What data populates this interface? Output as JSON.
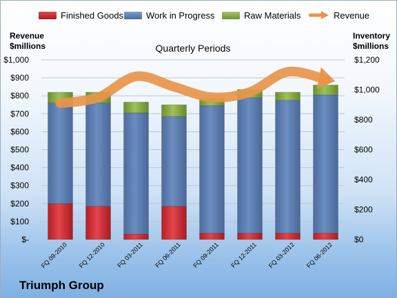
{
  "chart_data": {
    "type": "bar",
    "title": "Quarterly Periods",
    "categories": [
      "FQ 09-2010",
      "FQ 12-2010",
      "FQ 03-2011",
      "FQ 06-2011",
      "FQ 09-2011",
      "FQ 12-2011",
      "FQ 03-2012",
      "FQ 06-2012"
    ],
    "series": [
      {
        "name": "Finished Goods",
        "axis": "left",
        "stacked": true,
        "color": "#c0282e",
        "values": [
          200,
          185,
          30,
          185,
          35,
          35,
          35,
          35
        ]
      },
      {
        "name": "Work in Progress",
        "axis": "left",
        "stacked": true,
        "color": "#5b7db3",
        "values": [
          560,
          575,
          675,
          500,
          710,
          755,
          740,
          770
        ]
      },
      {
        "name": "Raw Materials",
        "axis": "left",
        "stacked": true,
        "color": "#8bb044",
        "values": [
          60,
          60,
          60,
          65,
          40,
          45,
          45,
          55
        ]
      },
      {
        "name": "Revenue",
        "axis": "right",
        "type": "line",
        "color": "#e8954a",
        "values": [
          910,
          950,
          1090,
          1020,
          950,
          985,
          1120,
          1070
        ]
      }
    ],
    "left_axis": {
      "label": "Revenue\n$millions",
      "min": 0,
      "max": 1000,
      "step": 100,
      "tick_labels": [
        "$-",
        "$100",
        "$200",
        "$300",
        "$400",
        "$500",
        "$600",
        "$700",
        "$800",
        "$900",
        "$1,000"
      ]
    },
    "right_axis": {
      "label": "Inventory\n$millions",
      "min": 0,
      "max": 1200,
      "step": 200,
      "tick_labels": [
        "$0",
        "$200",
        "$400",
        "$600",
        "$800",
        "$1,000",
        "$1,200"
      ]
    },
    "legend": {
      "position": "top"
    },
    "grid": true
  },
  "header": {
    "left_axis_title_line1": "Revenue",
    "left_axis_title_line2": "$millions",
    "right_axis_title_line1": "Inventory",
    "right_axis_title_line2": "$millions"
  },
  "legend_items": [
    {
      "label": "Finished Goods",
      "color": "#c0282e"
    },
    {
      "label": "Work in Progress",
      "color": "#5b7db3"
    },
    {
      "label": "Raw Materials",
      "color": "#8bb044"
    },
    {
      "label": "Revenue",
      "color": "#e8954a"
    }
  ],
  "company": "Triumph Group"
}
